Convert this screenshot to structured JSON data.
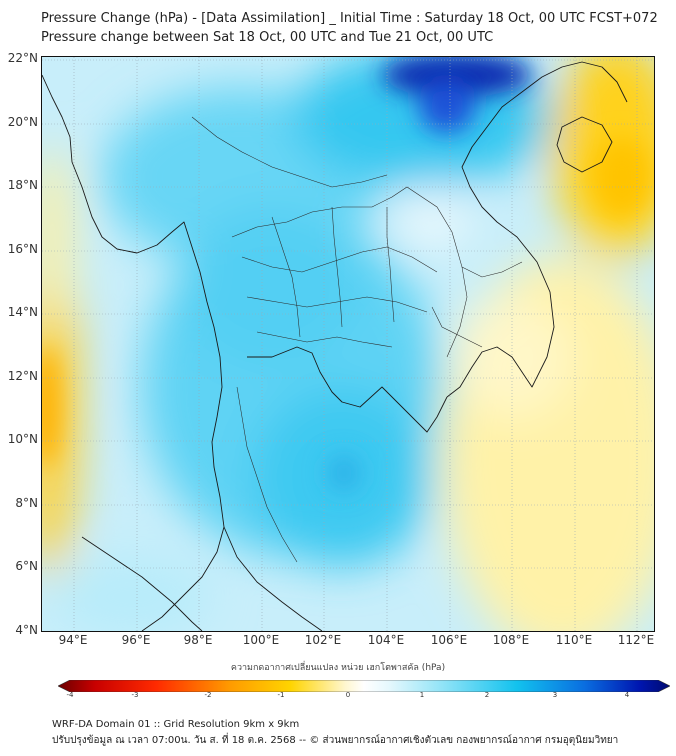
{
  "title_line1": "Pressure Change (hPa) - [Data Assimilation] _ Initial Time : Saturday 18 Oct, 00 UTC FCST+072",
  "title_line2": "Pressure change between Sat 18 Oct, 00 UTC and Tue 21 Oct, 00 UTC",
  "lat_labels": [
    "22°N",
    "20°N",
    "18°N",
    "16°N",
    "14°N",
    "12°N",
    "10°N",
    "8°N",
    "6°N",
    "4°N"
  ],
  "lon_labels": [
    "94°E",
    "96°E",
    "98°E",
    "100°E",
    "102°E",
    "104°E",
    "106°E",
    "108°E",
    "110°E",
    "112°E"
  ],
  "colorbar": {
    "label": "ความกดอากาศเปลี่ยนแปลง หน่วย เฮกโตพาสคัล (hPa)",
    "ticks": [
      "-4",
      "-3",
      "-2",
      "-1",
      "0",
      "1",
      "2",
      "3",
      "4"
    ]
  },
  "footer_line1": "WRF-DA Domain 01 :: Grid Resolution 9km x 9km",
  "footer_line2": "ปรับปรุงข้อมูล ณ เวลา 07:00น. วัน ส. ที่ 18 ต.ค. 2568 -- © ส่วนพยากรณ์อากาศเชิงตัวเลข กองพยากรณ์อากาศ กรมอุตุนิยมวิทยา",
  "colors": {
    "strong_fall": "#7a0000",
    "fall": "#ff2a00",
    "weak_fall": "#ffd400",
    "neutral": "#ffffff",
    "weak_rise": "#8fe3f7",
    "rise": "#12c2ee",
    "strong_rise": "#001a9a"
  }
}
